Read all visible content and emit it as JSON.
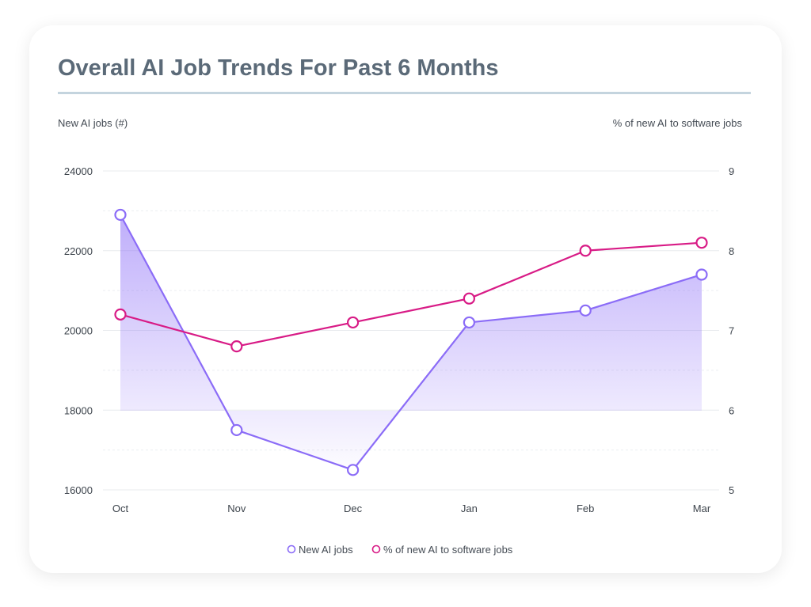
{
  "card": {
    "title": "Overall AI Job Trends For Past 6 Months"
  },
  "chart_data": {
    "type": "line",
    "title": "Overall AI Job Trends For Past 6 Months",
    "categories": [
      "Oct",
      "Nov",
      "Dec",
      "Jan",
      "Feb",
      "Mar"
    ],
    "y_left": {
      "label": "New AI jobs (#)",
      "ticks": [
        "24000",
        "22000",
        "20000",
        "18000",
        "16000"
      ],
      "ylim": [
        16000,
        24000
      ]
    },
    "y_right": {
      "label": "% of new AI to software jobs",
      "ticks": [
        "9",
        "8",
        "7",
        "6",
        "5"
      ],
      "ylim": [
        5,
        9
      ]
    },
    "series": [
      {
        "name": "New AI jobs",
        "axis": "left",
        "color": "#8b6cf7",
        "fill": "area-gradient",
        "values": [
          22900,
          17500,
          16500,
          20200,
          20500,
          21400
        ]
      },
      {
        "name": "% of new AI to software jobs",
        "axis": "right",
        "color": "#d81b86",
        "values": [
          7.2,
          6.8,
          7.1,
          7.4,
          8.0,
          8.1
        ]
      }
    ],
    "grid": true,
    "legend": "bottom-center"
  }
}
